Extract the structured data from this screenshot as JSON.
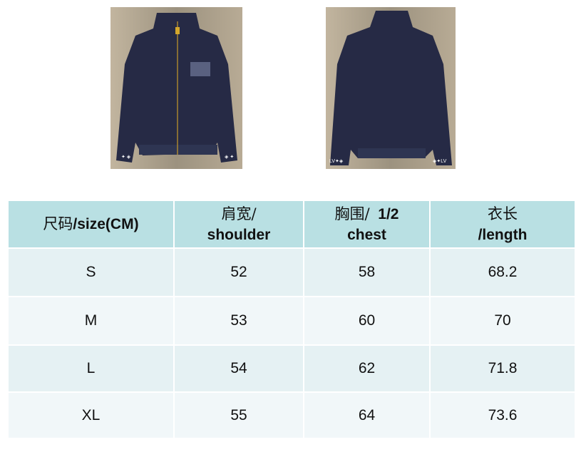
{
  "images": [
    {
      "name": "jacket-front",
      "colors": {
        "background": "#b9ad98",
        "jacket": "#262a45",
        "zipper": "#c79a2a"
      }
    },
    {
      "name": "jacket-back",
      "colors": {
        "background": "#b9ad98",
        "jacket": "#262a45"
      }
    }
  ],
  "table": {
    "headers": [
      {
        "cjk": "尺码",
        "en": "/size(CM)"
      },
      {
        "cjk": "肩宽/",
        "en": "shoulder"
      },
      {
        "cjk": "胸围/",
        "cjk_extra": "1/2",
        "en": "chest"
      },
      {
        "cjk": "衣长",
        "en": "/length"
      }
    ],
    "rows": [
      [
        "S",
        "52",
        "58",
        "68.2"
      ],
      [
        "M",
        "53",
        "60",
        "70"
      ],
      [
        "L",
        "54",
        "62",
        "71.8"
      ],
      [
        "XL",
        "55",
        "64",
        "73.6"
      ]
    ],
    "colors": {
      "header": "#b9e0e3",
      "row_a": "#e5f1f3",
      "row_b": "#f1f7f9"
    }
  }
}
